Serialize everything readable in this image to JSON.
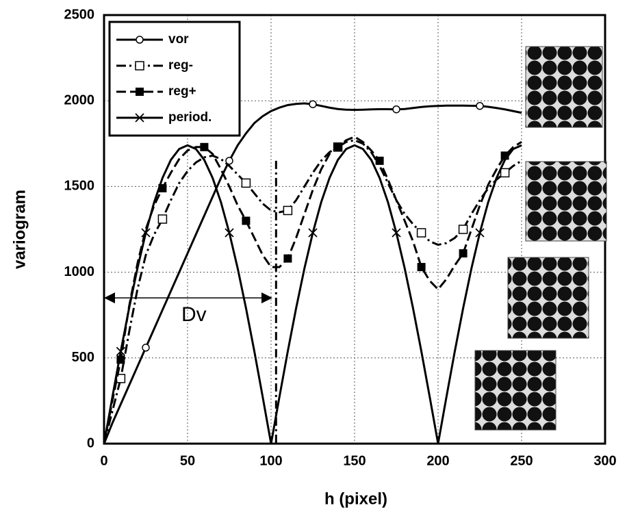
{
  "chart_data": {
    "type": "line",
    "xlabel": "h (pixel)",
    "ylabel": "variogram",
    "x": [
      0,
      5,
      10,
      15,
      20,
      25,
      30,
      35,
      40,
      45,
      50,
      55,
      60,
      65,
      70,
      75,
      80,
      85,
      90,
      95,
      100,
      105,
      110,
      115,
      120,
      125,
      130,
      135,
      140,
      145,
      150,
      155,
      160,
      165,
      170,
      175,
      180,
      185,
      190,
      195,
      200,
      205,
      210,
      215,
      220,
      225,
      230,
      235,
      240,
      245,
      250
    ],
    "series": [
      {
        "name": "vor",
        "color": "#000000",
        "dash": "solid",
        "marker": "circle-open",
        "marker_points": [
          5,
          15,
          25,
          35,
          45
        ],
        "values": [
          0,
          120,
          230,
          340,
          450,
          560,
          670,
          780,
          890,
          1000,
          1110,
          1220,
          1330,
          1440,
          1550,
          1650,
          1740,
          1810,
          1870,
          1910,
          1940,
          1960,
          1975,
          1982,
          1985,
          1980,
          1970,
          1960,
          1952,
          1948,
          1947,
          1948,
          1950,
          1951,
          1951,
          1950,
          1952,
          1958,
          1964,
          1968,
          1970,
          1972,
          1972,
          1972,
          1971,
          1970,
          1965,
          1958,
          1950,
          1940,
          1930
        ]
      },
      {
        "name": "reg-",
        "color": "#000000",
        "dash": "dashdot",
        "marker": "square-open",
        "marker_points": [
          2,
          7,
          17,
          22,
          28,
          38,
          43,
          48
        ],
        "values": [
          0,
          190,
          380,
          650,
          900,
          1100,
          1220,
          1310,
          1420,
          1520,
          1590,
          1640,
          1670,
          1680,
          1660,
          1620,
          1570,
          1520,
          1460,
          1400,
          1360,
          1350,
          1360,
          1420,
          1500,
          1580,
          1650,
          1700,
          1730,
          1760,
          1770,
          1750,
          1700,
          1620,
          1520,
          1420,
          1340,
          1280,
          1230,
          1180,
          1160,
          1170,
          1200,
          1250,
          1340,
          1420,
          1490,
          1540,
          1580,
          1620,
          1650
        ]
      },
      {
        "name": "reg+",
        "color": "#000000",
        "dash": "dashed",
        "marker": "square-filled",
        "marker_points": [
          2,
          7,
          12,
          17,
          22,
          28,
          33,
          38,
          43,
          48
        ],
        "values": [
          0,
          250,
          490,
          800,
          1050,
          1250,
          1390,
          1490,
          1580,
          1660,
          1710,
          1730,
          1730,
          1690,
          1600,
          1500,
          1390,
          1300,
          1200,
          1100,
          1030,
          1030,
          1080,
          1200,
          1340,
          1480,
          1600,
          1690,
          1730,
          1770,
          1790,
          1760,
          1710,
          1650,
          1540,
          1420,
          1300,
          1180,
          1030,
          950,
          900,
          960,
          1040,
          1110,
          1250,
          1390,
          1510,
          1600,
          1680,
          1730,
          1760
        ]
      },
      {
        "name": "period.",
        "color": "#000000",
        "dash": "solid",
        "marker": "x",
        "marker_points": [
          2,
          5,
          15,
          25,
          35,
          45
        ],
        "values": [
          0,
          272,
          538,
          790,
          1023,
          1230,
          1408,
          1550,
          1655,
          1719,
          1740,
          1719,
          1655,
          1550,
          1408,
          1230,
          1023,
          790,
          538,
          272,
          0,
          272,
          538,
          790,
          1023,
          1230,
          1408,
          1550,
          1655,
          1719,
          1740,
          1719,
          1655,
          1550,
          1408,
          1230,
          1023,
          790,
          538,
          272,
          0,
          272,
          538,
          790,
          1023,
          1230,
          1408,
          1550,
          1655,
          1719,
          1740
        ]
      }
    ],
    "xlim": [
      0,
      300
    ],
    "xticks": [
      0,
      50,
      100,
      150,
      200,
      250,
      300
    ],
    "ylim": [
      0,
      2500
    ],
    "yticks": [
      0,
      500,
      1000,
      1500,
      2000,
      2500
    ],
    "grid": true,
    "legend": "upper-left",
    "annotation": "Dv"
  }
}
